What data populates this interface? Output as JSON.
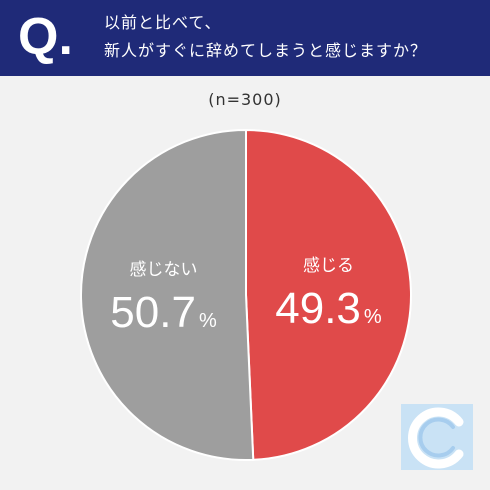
{
  "header": {
    "q_mark": "Q.",
    "question_line1": "以前と比べて、",
    "question_line2": "新人がすぐに辞めてしまうと感じますか？"
  },
  "sample_size": "(n=300)",
  "colors": {
    "header_bg": "#1f2a78",
    "slice_agree": "#e04a4a",
    "slice_disagree": "#9e9e9e",
    "logo": "#b8d8f2"
  },
  "logo_icon": "c-logo-icon",
  "chart_data": {
    "type": "pie",
    "title": "以前と比べて、新人がすぐに辞めてしまうと感じますか？",
    "n": 300,
    "unit": "%",
    "slices": [
      {
        "label": "感じる",
        "value": 49.3,
        "display": "49.3",
        "color": "#e04a4a"
      },
      {
        "label": "感じない",
        "value": 50.7,
        "display": "50.7",
        "color": "#9e9e9e"
      }
    ]
  }
}
